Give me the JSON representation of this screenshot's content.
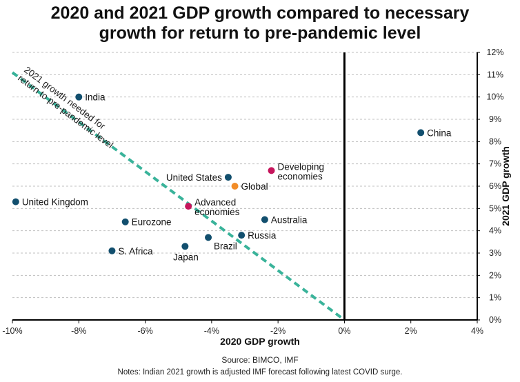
{
  "titles": {
    "line1": "2020 and 2021 GDP growth compared to necessary",
    "line2": "growth for return to pre-pandemic level"
  },
  "footer": {
    "source": "Source: BIMCO, IMF",
    "notes": "Notes: Indian 2021 growth is adjusted IMF forecast following latest COVID surge."
  },
  "colors": {
    "economy": "#124f6e",
    "aggregate": "#c6155c",
    "global": "#f28c28",
    "trend": "#39b39a",
    "axis": "#000000",
    "grid": "#bfbfbf"
  },
  "chart_data": {
    "type": "scatter",
    "title": "2020 and 2021 GDP growth compared to necessary growth for return to pre-pandemic level",
    "xlabel": "2020 GDP growth",
    "ylabel": "2021 GDP growth",
    "xlim": [
      -10,
      4
    ],
    "ylim": [
      0,
      12
    ],
    "x_ticks": [
      {
        "value": -10,
        "label": "-10%"
      },
      {
        "value": -8,
        "label": "-8%"
      },
      {
        "value": -6,
        "label": "-6%"
      },
      {
        "value": -4,
        "label": "-4%"
      },
      {
        "value": -2,
        "label": "-2%"
      },
      {
        "value": 0,
        "label": "0%"
      },
      {
        "value": 2,
        "label": "2%"
      },
      {
        "value": 4,
        "label": "4%"
      }
    ],
    "y_ticks": [
      {
        "value": 0,
        "label": "0%"
      },
      {
        "value": 1,
        "label": "1%"
      },
      {
        "value": 2,
        "label": "2%"
      },
      {
        "value": 3,
        "label": "3%"
      },
      {
        "value": 4,
        "label": "4%"
      },
      {
        "value": 5,
        "label": "5%"
      },
      {
        "value": 6,
        "label": "6%"
      },
      {
        "value": 7,
        "label": "7%"
      },
      {
        "value": 8,
        "label": "8%"
      },
      {
        "value": 9,
        "label": "9%"
      },
      {
        "value": 10,
        "label": "10%"
      },
      {
        "value": 11,
        "label": "11%"
      },
      {
        "value": 12,
        "label": "12%"
      }
    ],
    "grid": "horizontal dashed",
    "y_axis_side": "right",
    "points": [
      {
        "label": "India",
        "x": -8.0,
        "y": 10.0,
        "group": "economy",
        "label_pos": "right"
      },
      {
        "label": "China",
        "x": 2.3,
        "y": 8.4,
        "group": "economy",
        "label_pos": "right"
      },
      {
        "label": "Developing economies",
        "x": -2.2,
        "y": 6.7,
        "group": "aggregate",
        "label_pos": "right"
      },
      {
        "label": "United States",
        "x": -3.5,
        "y": 6.4,
        "group": "economy",
        "label_pos": "left"
      },
      {
        "label": "Global",
        "x": -3.3,
        "y": 6.0,
        "group": "global",
        "label_pos": "right"
      },
      {
        "label": "United Kingdom",
        "x": -9.9,
        "y": 5.3,
        "group": "economy",
        "label_pos": "right"
      },
      {
        "label": "Advanced economies",
        "x": -4.7,
        "y": 5.1,
        "group": "aggregate",
        "label_pos": "right"
      },
      {
        "label": "Australia",
        "x": -2.4,
        "y": 4.5,
        "group": "economy",
        "label_pos": "right"
      },
      {
        "label": "Eurozone",
        "x": -6.6,
        "y": 4.4,
        "group": "economy",
        "label_pos": "right"
      },
      {
        "label": "Russia",
        "x": -3.1,
        "y": 3.8,
        "group": "economy",
        "label_pos": "right"
      },
      {
        "label": "Brazil",
        "x": -4.1,
        "y": 3.7,
        "group": "economy",
        "label_pos": "below-right"
      },
      {
        "label": "Japan",
        "x": -4.8,
        "y": 3.3,
        "group": "economy",
        "label_pos": "below"
      },
      {
        "label": "S. Africa",
        "x": -7.0,
        "y": 3.1,
        "group": "economy",
        "label_pos": "right"
      }
    ],
    "reference_line": {
      "label": "2021 growth needed for return to pre-pandemic level",
      "points": [
        [
          -10,
          11.1
        ],
        [
          0,
          0
        ]
      ],
      "style": "dashed"
    }
  }
}
